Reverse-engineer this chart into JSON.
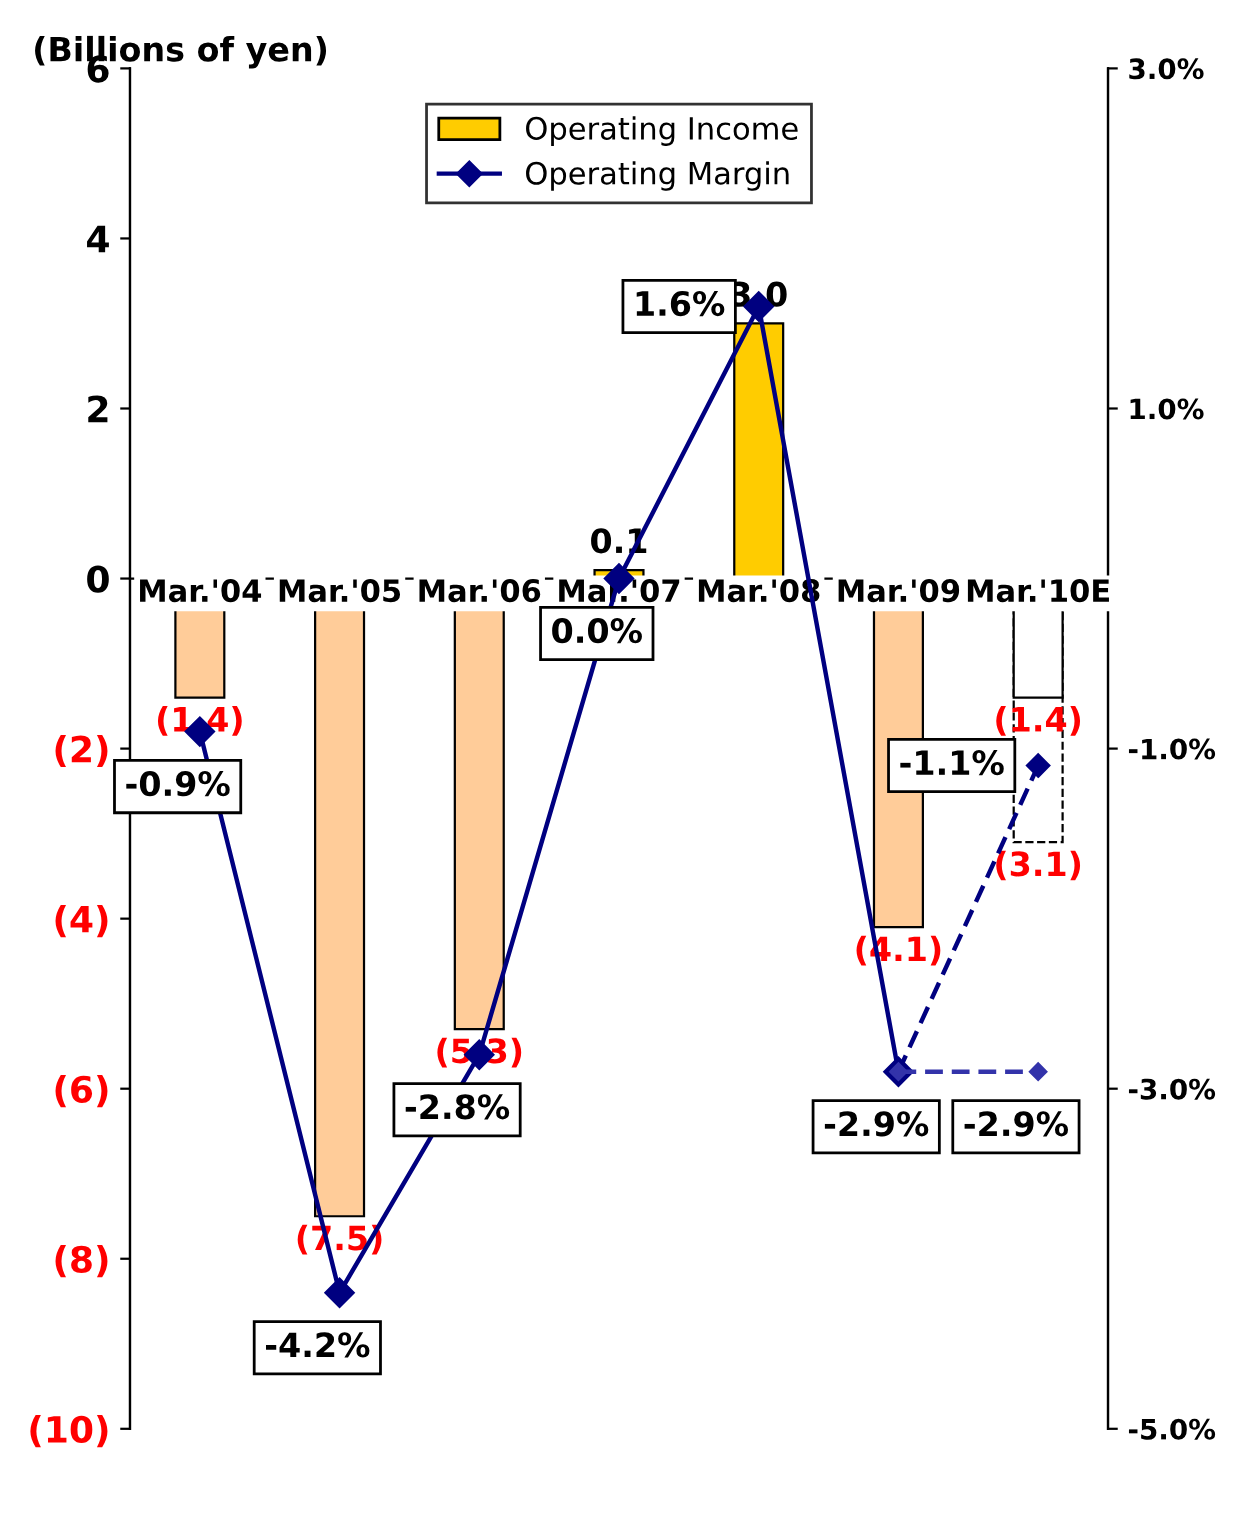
{
  "chart_data": {
    "type": "bar",
    "ylabel": "(Billions of yen)",
    "categories": [
      "Mar.'04",
      "Mar.'05",
      "Mar.'06",
      "Mar.'07",
      "Mar.'08",
      "Mar.'09",
      "Mar.'10E"
    ],
    "ylim": [
      -10,
      6
    ],
    "yticks": [
      {
        "value": -10,
        "label": "(10)"
      },
      {
        "value": -8,
        "label": "(8)"
      },
      {
        "value": -6,
        "label": "(6)"
      },
      {
        "value": -4,
        "label": "(4)"
      },
      {
        "value": -2,
        "label": "(2)"
      },
      0,
      2,
      4,
      6
    ],
    "y2lim": [
      -5,
      3
    ],
    "y2ticks": [
      {
        "value": -5,
        "label": "-5.0%"
      },
      {
        "value": -3,
        "label": "-3.0%"
      },
      {
        "value": -1,
        "label": "-1.0%"
      },
      {
        "value": 1,
        "label": "1.0%"
      },
      {
        "value": 3,
        "label": "3.0%"
      }
    ],
    "legend": "top",
    "grid": false,
    "series": [
      {
        "name": "Operating Income",
        "line_style": "solid",
        "color": "#ffcc00",
        "colors": [
          "#ffcc99",
          "#ffcc99",
          "#ffcc99",
          "#ffcc00",
          "#ffcc00",
          "#ffcc99",
          "#ffffff"
        ],
        "values": [
          -1.4,
          -7.5,
          -5.3,
          0.1,
          3.0,
          -4.1,
          -1.4
        ],
        "value_labels": [
          "(1.4)",
          "(7.5)",
          "(5.3)",
          "0.1",
          "3.0",
          "(4.1)",
          "(1.4)"
        ]
      },
      {
        "color": "#ffffff",
        "line_style": "dashed",
        "values": [
          null,
          null,
          null,
          null,
          null,
          null,
          -3.1
        ],
        "value_labels": [
          null,
          null,
          null,
          null,
          null,
          null,
          "(3.1)"
        ]
      },
      {
        "name": "Operating Margin",
        "type": "line",
        "axis": "y2",
        "color": "#000080",
        "marker": "diamond",
        "line_style": "solid",
        "values": [
          -0.9,
          -4.2,
          -2.8,
          0.0,
          1.6,
          -2.9,
          null
        ],
        "value_labels": [
          "-0.9%",
          "-4.2%",
          "-2.8%",
          "0.0%",
          "1.6%",
          "-2.9%",
          null
        ]
      },
      {
        "type": "line",
        "axis": "y2",
        "color": "#000080",
        "marker": "diamond",
        "line_style": "dashed",
        "values": [
          null,
          null,
          null,
          null,
          null,
          -2.9,
          -1.1
        ],
        "value_labels": [
          null,
          null,
          null,
          null,
          null,
          null,
          "-1.1%"
        ]
      },
      {
        "type": "line",
        "axis": "y2",
        "color": "#3333aa",
        "marker": "diamond",
        "line_style": "dashed",
        "values": [
          null,
          null,
          null,
          null,
          null,
          -2.9,
          -2.9
        ],
        "value_labels": [
          null,
          null,
          null,
          null,
          null,
          null,
          "-2.9%"
        ]
      }
    ]
  }
}
